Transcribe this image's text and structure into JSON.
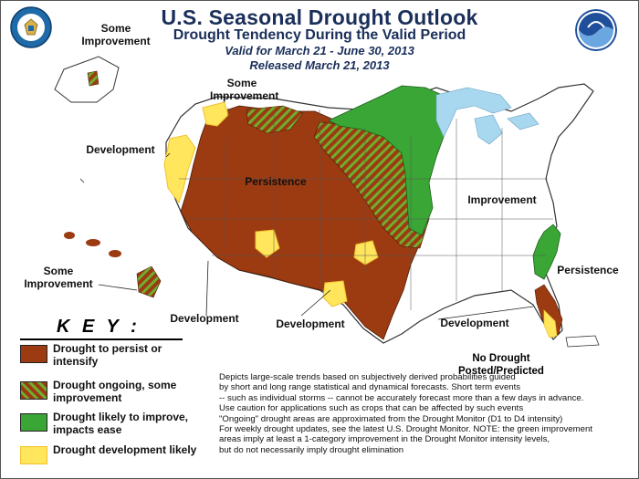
{
  "header": {
    "title": "U.S. Seasonal Drought Outlook",
    "subtitle": "Drought Tendency During the Valid Period",
    "valid": "Valid for March 21 - June 30, 2013",
    "released": "Released March 21, 2013"
  },
  "logos": {
    "left": "commerce-seal-icon",
    "right": "noaa-logo-icon"
  },
  "map_labels": {
    "alaska": "Some Improvement",
    "northwest": "Some Improvement",
    "west_coast": "Development",
    "persistence_west": "Persistence",
    "improvement_east": "Improvement",
    "persistence_southeast": "Persistence",
    "hawaii": "Some Improvement",
    "southwest": "Development",
    "texas": "Development",
    "gulf": "Development",
    "no_drought": "No Drought Posted/Predicted"
  },
  "key": {
    "title": "K E Y :",
    "items": [
      {
        "label": "Drought to persist or intensify",
        "color": "#9c3b12"
      },
      {
        "label": "Drought ongoing, some improvement",
        "color": "#9c3b12",
        "hatch": "#6fae2e"
      },
      {
        "label": "Drought likely to improve, impacts ease",
        "color": "#3aa635"
      },
      {
        "label": "Drought development likely",
        "color": "#ffe65c"
      }
    ]
  },
  "notes": [
    "Depicts large-scale trends based on subjectively derived probabilities guided",
    "by short  and long range statistical and dynamical forecasts. Short term events",
    "-- such as individual storms -- cannot be accurately forecast more than a few days in advance.",
    "Use caution for applications    such as crops    that can be affected by such events",
    "\"Ongoing\" drought areas are approximated from the Drought Monitor (D1 to D4 intensity)",
    "For weekly drought updates, see the latest U.S. Drought Monitor. NOTE: the green improvement",
    "areas imply at least a 1-category improvement in the Drought Monitor intensity levels,",
    "but do not necessarily imply drought elimination"
  ],
  "colors": {
    "persist": "#9c3b12",
    "improve_hatch": "#6fae2e",
    "improve": "#3aa635",
    "develop": "#ffe65c",
    "develop_edge": "#f2c12e",
    "lakes": "#a8d8f0",
    "title": "#1a2f5a"
  }
}
